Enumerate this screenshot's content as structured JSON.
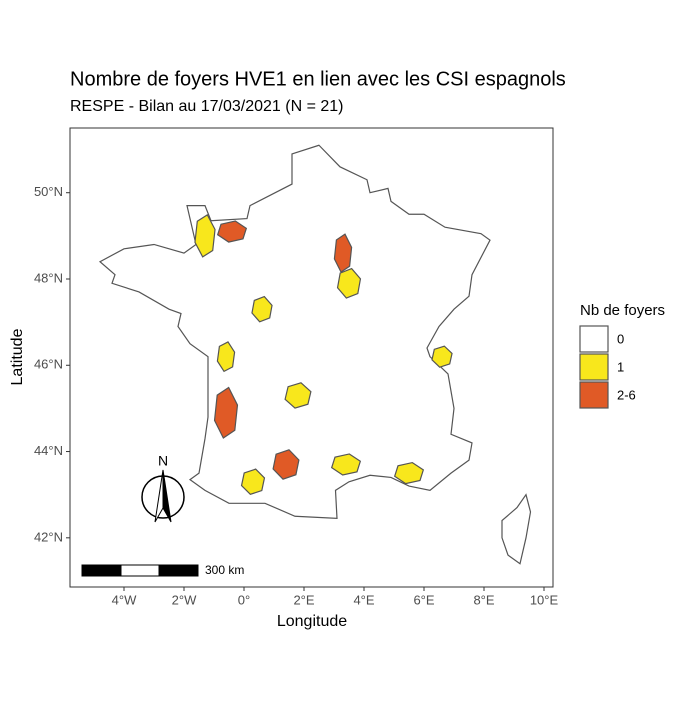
{
  "title": "Nombre de foyers HVE1 en lien avec les CSI espagnols",
  "subtitle": "RESPE - Bilan au 17/03/2021 (N = 21)",
  "x_label": "Longitude",
  "y_label": "Latitude",
  "xlim": [
    -5.8,
    10.3
  ],
  "ylim": [
    40.86,
    51.5
  ],
  "xticks": [
    {
      "value": -4,
      "label": "4°W"
    },
    {
      "value": -2,
      "label": "2°W"
    },
    {
      "value": 0,
      "label": "0°"
    },
    {
      "value": 2,
      "label": "2°E"
    },
    {
      "value": 4,
      "label": "4°E"
    },
    {
      "value": 6,
      "label": "6°E"
    },
    {
      "value": 8,
      "label": "8°E"
    },
    {
      "value": 10,
      "label": "10°E"
    }
  ],
  "yticks": [
    {
      "value": 42,
      "label": "42°N"
    },
    {
      "value": 44,
      "label": "44°N"
    },
    {
      "value": 46,
      "label": "46°N"
    },
    {
      "value": 48,
      "label": "48°N"
    },
    {
      "value": 50,
      "label": "50°N"
    }
  ],
  "legend": {
    "title": "Nb de foyers",
    "items": [
      {
        "label": "0",
        "color": "#ffffff"
      },
      {
        "label": "1",
        "color": "#f8e71c"
      },
      {
        "label": "2-6",
        "color": "#e05a26"
      }
    ]
  },
  "scale_bar": "300 km",
  "north": "N"
}
